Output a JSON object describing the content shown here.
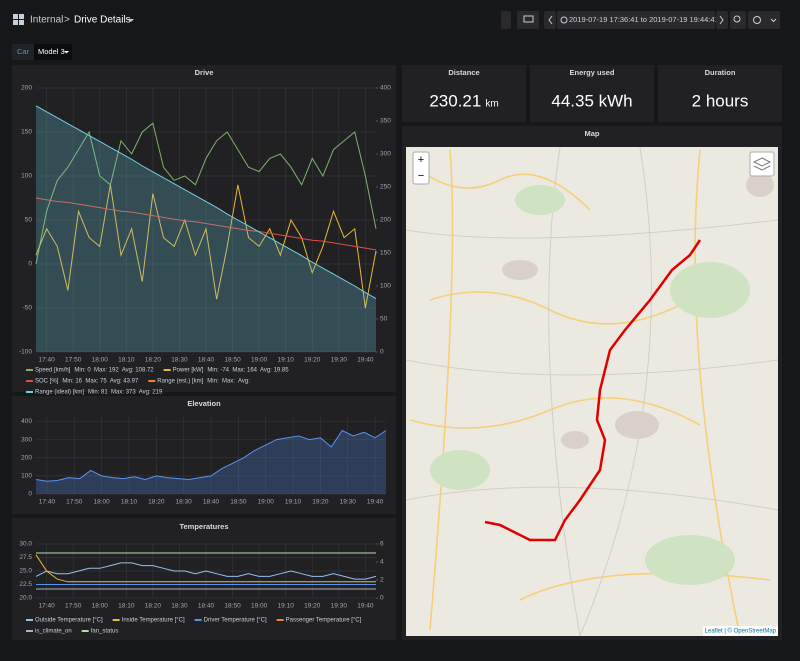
{
  "header": {
    "root": "Internal",
    "separator": ">",
    "title": "Drive Details",
    "time_range": "2019-07-19 17:36:41 to 2019-07-19 19:44:41"
  },
  "variable": {
    "label": "Car",
    "value": "Model 3"
  },
  "stats": [
    {
      "title": "Distance",
      "value": "230.21",
      "unit": "km"
    },
    {
      "title": "Energy used",
      "value": "44.35 kWh"
    },
    {
      "title": "Duration",
      "value": "2 hours"
    }
  ],
  "map": {
    "title": "Map",
    "zoom_in": "+",
    "zoom_out": "−",
    "attribution": "Leaflet | © OpenStreetMap"
  },
  "drive": {
    "type": "line",
    "title": "Drive",
    "x": [
      "17:36",
      "17:40",
      "17:44",
      "17:48",
      "17:52",
      "17:56",
      "18:00",
      "18:04",
      "18:08",
      "18:12",
      "18:16",
      "18:20",
      "18:24",
      "18:28",
      "18:32",
      "18:36",
      "18:40",
      "18:44",
      "18:48",
      "18:52",
      "18:56",
      "19:00",
      "19:04",
      "19:08",
      "19:12",
      "19:16",
      "19:20",
      "19:24",
      "19:28",
      "19:32",
      "19:36",
      "19:40",
      "19:44"
    ],
    "xlim": [
      "17:36",
      "19:44"
    ],
    "xticks": [
      "17:40",
      "17:50",
      "18:00",
      "18:10",
      "18:20",
      "18:30",
      "18:40",
      "18:50",
      "19:00",
      "19:10",
      "19:20",
      "19:30",
      "19:40"
    ],
    "ylim": [
      -100,
      200
    ],
    "yticks": [
      -100,
      -50,
      0,
      50,
      100,
      150,
      200
    ],
    "y2lim": [
      0,
      400
    ],
    "y2ticks": [
      0,
      50,
      100,
      150,
      200,
      250,
      300,
      350,
      400
    ],
    "grid": true,
    "series": [
      {
        "name": "Speed [km/h]",
        "legend_stats": "Min: 0  Max: 192  Avg: 108.72",
        "color": "#7eb26d",
        "values": [
          0,
          60,
          95,
          110,
          130,
          150,
          100,
          90,
          140,
          125,
          150,
          160,
          110,
          95,
          100,
          90,
          120,
          140,
          150,
          130,
          110,
          105,
          120,
          125,
          110,
          90,
          120,
          100,
          130,
          140,
          150,
          100,
          40
        ]
      },
      {
        "name": "Power [kW]",
        "legend_stats": "Min: -74  Max: 164  Avg: 19.85",
        "color": "#eab839",
        "values": [
          10,
          40,
          20,
          -30,
          60,
          30,
          20,
          90,
          10,
          40,
          -20,
          80,
          30,
          20,
          50,
          10,
          40,
          -40,
          20,
          90,
          30,
          20,
          40,
          10,
          50,
          30,
          -10,
          20,
          60,
          30,
          40,
          -50,
          15
        ]
      },
      {
        "name": "SOC [%]",
        "legend_stats": "Min: 16  Max: 75  Avg: 43.97",
        "color": "#e24d42",
        "values": [
          75,
          73,
          71,
          70,
          68,
          66,
          64,
          62,
          60,
          59,
          57,
          55,
          53,
          51,
          49,
          48,
          46,
          44,
          42,
          40,
          38,
          37,
          35,
          33,
          31,
          29,
          27,
          26,
          24,
          22,
          20,
          18,
          16
        ]
      },
      {
        "name": "Range (est.) [km]",
        "legend_stats": "Min:  Max:  Avg:",
        "color": "#ef843c",
        "axis": "y2",
        "values": [
          null,
          null,
          null,
          null,
          null,
          null,
          null,
          null,
          null,
          null,
          null,
          null,
          null,
          null,
          null,
          null,
          null,
          null,
          null,
          null,
          null,
          null,
          null,
          null,
          null,
          null,
          null,
          null,
          null,
          null,
          null,
          null,
          null
        ]
      },
      {
        "name": "Range (ideal) [km]",
        "legend_stats": "Min: 81  Max: 373  Avg: 219",
        "color": "#6ed0e0",
        "axis": "y2",
        "fill": true,
        "values": [
          373,
          364,
          355,
          346,
          337,
          328,
          319,
          310,
          301,
          292,
          282,
          273,
          264,
          255,
          246,
          237,
          228,
          219,
          209,
          200,
          191,
          182,
          173,
          164,
          155,
          146,
          136,
          127,
          118,
          109,
          100,
          90,
          81
        ]
      }
    ]
  },
  "elevation": {
    "type": "line",
    "title": "Elevation",
    "x": [
      "17:36",
      "17:40",
      "17:44",
      "17:48",
      "17:52",
      "17:56",
      "18:00",
      "18:04",
      "18:08",
      "18:12",
      "18:16",
      "18:20",
      "18:24",
      "18:28",
      "18:32",
      "18:36",
      "18:40",
      "18:44",
      "18:48",
      "18:52",
      "18:56",
      "19:00",
      "19:04",
      "19:08",
      "19:12",
      "19:16",
      "19:20",
      "19:24",
      "19:28",
      "19:32",
      "19:36",
      "19:40",
      "19:44"
    ],
    "xlim": [
      "17:36",
      "19:44"
    ],
    "xticks": [
      "17:40",
      "17:50",
      "18:00",
      "18:10",
      "18:20",
      "18:30",
      "18:40",
      "18:50",
      "19:00",
      "19:10",
      "19:20",
      "19:30",
      "19:40"
    ],
    "ylim": [
      0,
      430
    ],
    "yticks": [
      0,
      100,
      200,
      300,
      400
    ],
    "grid": true,
    "series": [
      {
        "color": "#5794f2",
        "fill": true,
        "values": [
          80,
          70,
          75,
          90,
          85,
          130,
          100,
          90,
          85,
          95,
          80,
          100,
          90,
          85,
          80,
          90,
          100,
          140,
          170,
          200,
          240,
          270,
          300,
          310,
          320,
          300,
          310,
          260,
          350,
          320,
          340,
          310,
          350
        ]
      }
    ]
  },
  "temperatures": {
    "type": "line",
    "title": "Temperatures",
    "x": [
      "17:36",
      "17:40",
      "17:44",
      "17:48",
      "17:52",
      "17:56",
      "18:00",
      "18:04",
      "18:08",
      "18:12",
      "18:16",
      "18:20",
      "18:24",
      "18:28",
      "18:32",
      "18:36",
      "18:40",
      "18:44",
      "18:48",
      "18:52",
      "18:56",
      "19:00",
      "19:04",
      "19:08",
      "19:12",
      "19:16",
      "19:20",
      "19:24",
      "19:28",
      "19:32",
      "19:36",
      "19:40",
      "19:44"
    ],
    "xlim": [
      "17:36",
      "19:44"
    ],
    "xticks": [
      "17:40",
      "17:50",
      "18:00",
      "18:10",
      "18:20",
      "18:30",
      "18:40",
      "18:50",
      "19:00",
      "19:10",
      "19:20",
      "19:30",
      "19:40"
    ],
    "ylim": [
      20,
      30
    ],
    "yticks": [
      {
        "value": 20,
        "label": "20.0"
      },
      22.5,
      {
        "value": 25,
        "label": "25.0"
      },
      27.5,
      {
        "value": 30,
        "label": "30.0"
      }
    ],
    "y2lim": [
      0,
      6
    ],
    "y2ticks": [
      0,
      2,
      4,
      6
    ],
    "grid": true,
    "series": [
      {
        "name": "Outside Temperature [°C]",
        "color": "#9ac0e8",
        "values": [
          24,
          25,
          24.5,
          24.5,
          25,
          25.5,
          25.5,
          26,
          26.5,
          26.5,
          26,
          26,
          25.5,
          25,
          25,
          24.5,
          25,
          24.5,
          24,
          24,
          24.5,
          24,
          24,
          24.5,
          25,
          24.5,
          24,
          24,
          24.5,
          24,
          23.5,
          23.5,
          24
        ]
      },
      {
        "name": "Inside Temperature [°C]",
        "color": "#eab839",
        "values": [
          28,
          25,
          23.5,
          23,
          23,
          23,
          23,
          23,
          23,
          23,
          23,
          23,
          23,
          23,
          23,
          23,
          23,
          23,
          23,
          23,
          23,
          23,
          23,
          23,
          23,
          23,
          23,
          23,
          23,
          23,
          23,
          23,
          23
        ]
      },
      {
        "name": "Driver Temperature [°C]",
        "color": "#5794f2",
        "values": [
          22.5,
          22.5,
          22.5,
          22.5,
          22.5,
          22.5,
          22.5,
          22.5,
          22.5,
          22.5,
          22.5,
          22.5,
          22.5,
          22.5,
          22.5,
          22.5,
          22.5,
          22.5,
          22.5,
          22.5,
          22.5,
          22.5,
          22.5,
          22.5,
          22.5,
          22.5,
          22.5,
          22.5,
          22.5,
          22.5,
          22.5,
          22.5,
          22.5
        ]
      },
      {
        "name": "Passenger Temperature [°C]",
        "color": "#ef843c",
        "values": [
          null,
          null,
          null,
          null,
          null,
          null,
          null,
          null,
          null,
          null,
          null,
          null,
          null,
          null,
          null,
          null,
          null,
          null,
          null,
          null,
          null,
          null,
          null,
          null,
          null,
          null,
          null,
          null,
          null,
          null,
          null,
          null,
          null
        ]
      },
      {
        "name": "is_climate_on",
        "color": "#b4b4b4",
        "axis": "y2",
        "values": [
          1,
          1,
          1,
          1,
          1,
          1,
          1,
          1,
          1,
          1,
          1,
          1,
          1,
          1,
          1,
          1,
          1,
          1,
          1,
          1,
          1,
          1,
          1,
          1,
          1,
          1,
          1,
          1,
          1,
          1,
          1,
          1,
          1
        ]
      },
      {
        "name": "fan_status",
        "color": "#b7dbab",
        "axis": "y2",
        "values": [
          5,
          5,
          5,
          5,
          5,
          5,
          5,
          5,
          5,
          5,
          5,
          5,
          5,
          5,
          5,
          5,
          5,
          5,
          5,
          5,
          5,
          5,
          5,
          5,
          5,
          5,
          5,
          5,
          5,
          5,
          5,
          5,
          5
        ]
      }
    ]
  }
}
